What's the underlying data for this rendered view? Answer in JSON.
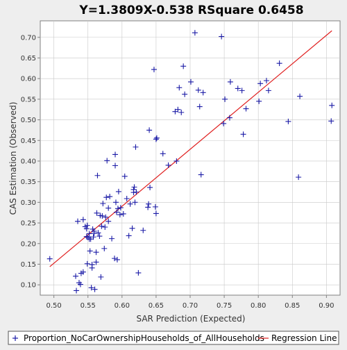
{
  "chart_data": {
    "type": "scatter",
    "title": "Y=1.3809X-0.538    RSquare 0.6458",
    "xlabel": "SAR Prediction (Expected)",
    "ylabel": "CAS Estimation (Observed)",
    "xlim": [
      0.48,
      0.92
    ],
    "ylim": [
      0.075,
      0.74
    ],
    "xticks": [
      0.5,
      0.55,
      0.6,
      0.65,
      0.7,
      0.75,
      0.8,
      0.85,
      0.9
    ],
    "yticks": [
      0.1,
      0.15,
      0.2,
      0.25,
      0.3,
      0.35,
      0.4,
      0.45,
      0.5,
      0.55,
      0.6,
      0.65,
      0.7
    ],
    "grid": true,
    "legend": "bottom",
    "series": [
      {
        "name": "Proportion_NoCarOwnershipHouseholds_of_AllHouseholds",
        "color": "#1a1aa6",
        "marker": "plus",
        "points": [
          [
            0.494,
            0.163
          ],
          [
            0.532,
            0.121
          ],
          [
            0.533,
            0.086
          ],
          [
            0.535,
            0.254
          ],
          [
            0.537,
            0.105
          ],
          [
            0.539,
            0.101
          ],
          [
            0.54,
            0.128
          ],
          [
            0.543,
            0.131
          ],
          [
            0.543,
            0.258
          ],
          [
            0.546,
            0.241
          ],
          [
            0.548,
            0.217
          ],
          [
            0.548,
            0.236
          ],
          [
            0.549,
            0.151
          ],
          [
            0.549,
            0.244
          ],
          [
            0.55,
            0.215
          ],
          [
            0.552,
            0.224
          ],
          [
            0.552,
            0.211
          ],
          [
            0.553,
            0.182
          ],
          [
            0.554,
            0.211
          ],
          [
            0.555,
            0.093
          ],
          [
            0.556,
            0.149
          ],
          [
            0.556,
            0.141
          ],
          [
            0.557,
            0.235
          ],
          [
            0.558,
            0.216
          ],
          [
            0.559,
            0.225
          ],
          [
            0.559,
            0.23
          ],
          [
            0.56,
            0.089
          ],
          [
            0.562,
            0.155
          ],
          [
            0.562,
            0.179
          ],
          [
            0.563,
            0.274
          ],
          [
            0.564,
            0.365
          ],
          [
            0.565,
            0.226
          ],
          [
            0.567,
            0.218
          ],
          [
            0.568,
            0.268
          ],
          [
            0.569,
            0.119
          ],
          [
            0.57,
            0.242
          ],
          [
            0.571,
            0.267
          ],
          [
            0.572,
            0.297
          ],
          [
            0.574,
            0.188
          ],
          [
            0.575,
            0.24
          ],
          [
            0.576,
            0.264
          ],
          [
            0.577,
            0.312
          ],
          [
            0.578,
            0.401
          ],
          [
            0.58,
            0.254
          ],
          [
            0.58,
            0.286
          ],
          [
            0.582,
            0.314
          ],
          [
            0.585,
            0.212
          ],
          [
            0.589,
            0.164
          ],
          [
            0.59,
            0.389
          ],
          [
            0.59,
            0.416
          ],
          [
            0.591,
            0.3
          ],
          [
            0.592,
            0.276
          ],
          [
            0.593,
            0.161
          ],
          [
            0.594,
            0.285
          ],
          [
            0.595,
            0.326
          ],
          [
            0.597,
            0.27
          ],
          [
            0.598,
            0.287
          ],
          [
            0.602,
            0.272
          ],
          [
            0.604,
            0.363
          ],
          [
            0.607,
            0.309
          ],
          [
            0.61,
            0.219
          ],
          [
            0.612,
            0.296
          ],
          [
            0.615,
            0.237
          ],
          [
            0.617,
            0.324
          ],
          [
            0.617,
            0.331
          ],
          [
            0.618,
            0.337
          ],
          [
            0.619,
            0.3
          ],
          [
            0.62,
            0.434
          ],
          [
            0.621,
            0.325
          ],
          [
            0.624,
            0.129
          ],
          [
            0.631,
            0.232
          ],
          [
            0.638,
            0.288
          ],
          [
            0.639,
            0.296
          ],
          [
            0.64,
            0.475
          ],
          [
            0.641,
            0.336
          ],
          [
            0.647,
            0.622
          ],
          [
            0.649,
            0.289
          ],
          [
            0.65,
            0.273
          ],
          [
            0.65,
            0.453
          ],
          [
            0.651,
            0.456
          ],
          [
            0.66,
            0.418
          ],
          [
            0.668,
            0.39
          ],
          [
            0.678,
            0.52
          ],
          [
            0.68,
            0.4
          ],
          [
            0.682,
            0.525
          ],
          [
            0.684,
            0.578
          ],
          [
            0.687,
            0.518
          ],
          [
            0.69,
            0.63
          ],
          [
            0.692,
            0.562
          ],
          [
            0.701,
            0.592
          ],
          [
            0.707,
            0.711
          ],
          [
            0.712,
            0.572
          ],
          [
            0.714,
            0.532
          ],
          [
            0.716,
            0.367
          ],
          [
            0.719,
            0.566
          ],
          [
            0.746,
            0.702
          ],
          [
            0.749,
            0.491
          ],
          [
            0.751,
            0.55
          ],
          [
            0.758,
            0.505
          ],
          [
            0.759,
            0.592
          ],
          [
            0.77,
            0.576
          ],
          [
            0.776,
            0.571
          ],
          [
            0.778,
            0.465
          ],
          [
            0.782,
            0.527
          ],
          [
            0.801,
            0.545
          ],
          [
            0.803,
            0.588
          ],
          [
            0.812,
            0.595
          ],
          [
            0.815,
            0.571
          ],
          [
            0.831,
            0.637
          ],
          [
            0.844,
            0.496
          ],
          [
            0.859,
            0.361
          ],
          [
            0.861,
            0.557
          ],
          [
            0.907,
            0.497
          ],
          [
            0.908,
            0.535
          ]
        ]
      },
      {
        "name": "Regression Line",
        "color": "#e02020",
        "type": "line",
        "points": [
          [
            0.494,
            0.144
          ],
          [
            0.908,
            0.716
          ]
        ]
      }
    ]
  }
}
